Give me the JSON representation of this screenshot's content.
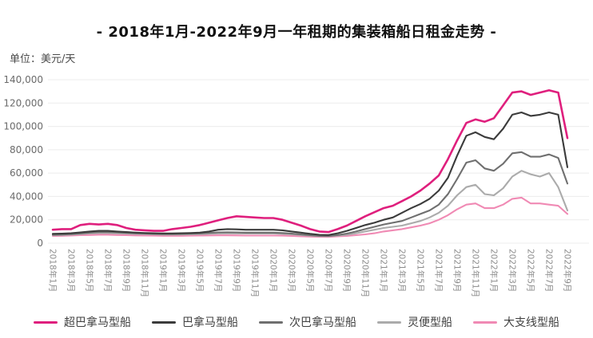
{
  "title": "- 2018年1月-2022年9月一年租期的集装箱船日租金走势 -",
  "unit_label": "单位：美元/天",
  "chart_data": {
    "type": "line",
    "title": "- 2018年1月-2022年9月一年租期的集装箱船日租金走势 -",
    "ylabel": "单位：美元/天",
    "ylim": [
      0,
      140000
    ],
    "yticks": [
      0,
      20000,
      40000,
      60000,
      80000,
      100000,
      120000,
      140000
    ],
    "ytick_labels": [
      "0",
      "20,000",
      "40,000",
      "60,000",
      "80,000",
      "100,000",
      "120,000",
      "140,000"
    ],
    "grid": "horizontal",
    "legend_position": "bottom",
    "x_tick_every_months": 2,
    "x_tick_labels": [
      "2018年1月",
      "2018年3月",
      "2018年5月",
      "2018年7月",
      "2018年9月",
      "2018年11月",
      "2019年1月",
      "2019年3月",
      "2019年5月",
      "2019年7月",
      "2019年9月",
      "2019年11月",
      "2020年1月",
      "2020年3月",
      "2020年5月",
      "2020年7月",
      "2020年9月",
      "2020年11月",
      "2021年1月",
      "2021年3月",
      "2021年5月",
      "2021年7月",
      "2021年9月",
      "2021年11月",
      "2022年1月",
      "2022年3月",
      "2022年5月",
      "2022年7月",
      "2022年9月"
    ],
    "series": [
      {
        "name": "超巴拿马型船",
        "color": "#df1f7d",
        "values": [
          11500,
          12000,
          12000,
          15500,
          16500,
          16000,
          16500,
          15500,
          13000,
          11500,
          11000,
          10500,
          10500,
          12000,
          13000,
          14000,
          15500,
          17500,
          19500,
          21500,
          23000,
          22500,
          22000,
          21500,
          21500,
          20000,
          17500,
          15000,
          12000,
          10000,
          9500,
          12000,
          15000,
          19000,
          23000,
          26500,
          30000,
          32000,
          36000,
          40000,
          45000,
          51000,
          58000,
          72000,
          88000,
          103000,
          106000,
          104000,
          107000,
          118000,
          129000,
          130000,
          127000,
          129000,
          131000,
          129000,
          90000
        ]
      },
      {
        "name": "巴拿马型船",
        "color": "#3b3b3b",
        "values": [
          8000,
          8200,
          8500,
          9200,
          10000,
          10500,
          10500,
          10000,
          9500,
          9000,
          8700,
          8500,
          8300,
          8300,
          8500,
          8700,
          9000,
          10000,
          11500,
          12000,
          11800,
          11500,
          11500,
          11500,
          11500,
          11000,
          10000,
          9000,
          8000,
          7200,
          7000,
          8500,
          10500,
          13000,
          15500,
          17500,
          20000,
          22000,
          26000,
          30000,
          33500,
          38000,
          45000,
          56000,
          75000,
          92000,
          95000,
          91000,
          89000,
          98000,
          110000,
          112000,
          109000,
          110000,
          112000,
          110000,
          65000
        ]
      },
      {
        "name": "次巴拿马型船",
        "color": "#6f6f6f",
        "values": [
          7200,
          7400,
          7800,
          8300,
          9000,
          9500,
          9500,
          9200,
          8800,
          8500,
          8300,
          8000,
          7800,
          7800,
          8000,
          8200,
          8400,
          8800,
          9200,
          9300,
          9200,
          9000,
          9000,
          9000,
          9000,
          8700,
          8200,
          7500,
          6800,
          6300,
          6200,
          7000,
          8200,
          10000,
          12000,
          14000,
          16000,
          17500,
          19000,
          22000,
          25000,
          28000,
          33000,
          42000,
          55000,
          69000,
          71000,
          64000,
          62000,
          68000,
          77000,
          78000,
          74000,
          74000,
          76000,
          73000,
          51000
        ]
      },
      {
        "name": "灵便型船",
        "color": "#ababab",
        "values": [
          6800,
          7000,
          7300,
          7800,
          8300,
          8600,
          8600,
          8400,
          8100,
          7900,
          7700,
          7500,
          7300,
          7300,
          7400,
          7500,
          7700,
          8000,
          8300,
          8400,
          8300,
          8200,
          8200,
          8200,
          8200,
          8000,
          7600,
          7000,
          6400,
          6000,
          5900,
          6500,
          7200,
          8500,
          10000,
          11500,
          13000,
          14000,
          15000,
          17000,
          19000,
          22000,
          26000,
          32000,
          41000,
          48000,
          50000,
          42000,
          41000,
          47000,
          57000,
          62000,
          59000,
          57000,
          60000,
          48000,
          28000
        ]
      },
      {
        "name": "大支线型船",
        "color": "#f08ab4",
        "values": [
          6200,
          6300,
          6500,
          6800,
          7000,
          7200,
          7200,
          7000,
          6800,
          6600,
          6500,
          6400,
          6300,
          6300,
          6300,
          6400,
          6500,
          6600,
          6700,
          6700,
          6600,
          6500,
          6500,
          6500,
          6500,
          6400,
          6200,
          5900,
          5600,
          5400,
          5300,
          5800,
          6200,
          6800,
          7500,
          8500,
          10000,
          11000,
          12000,
          13500,
          15000,
          17000,
          20000,
          24000,
          29000,
          33000,
          34000,
          30000,
          30000,
          33000,
          38000,
          39000,
          34000,
          34000,
          33000,
          32000,
          25000
        ]
      }
    ]
  }
}
